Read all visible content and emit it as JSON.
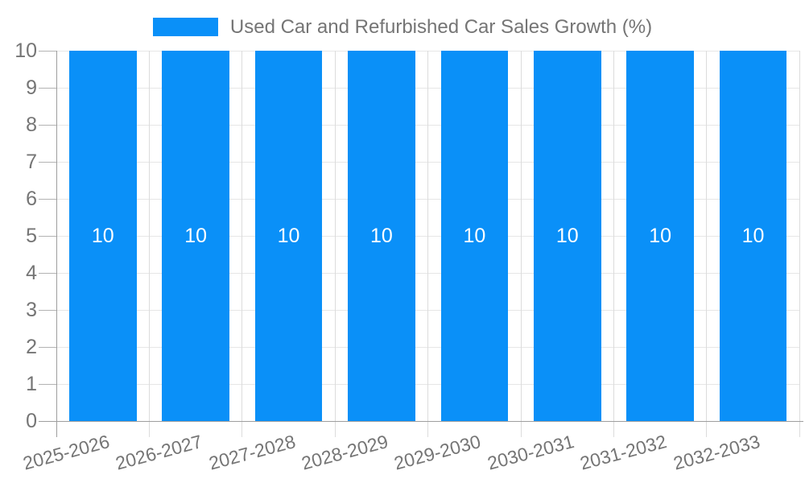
{
  "chart_data": {
    "type": "bar",
    "title": "",
    "categories": [
      "2025-2026",
      "2026-2027",
      "2027-2028",
      "2028-2029",
      "2029-2030",
      "2030-2031",
      "2031-2032",
      "2032-2033"
    ],
    "series": [
      {
        "name": "Used Car and Refurbished Car Sales Growth (%)",
        "values": [
          10,
          10,
          10,
          10,
          10,
          10,
          10,
          10
        ]
      }
    ],
    "bar_value_labels": [
      "10",
      "10",
      "10",
      "10",
      "10",
      "10",
      "10",
      "10"
    ],
    "xlabel": "",
    "ylabel": "",
    "ylim": [
      0,
      10
    ],
    "y_ticks": [
      0,
      1,
      2,
      3,
      4,
      5,
      6,
      7,
      8,
      9,
      10
    ],
    "grid": true,
    "legend_position": "top",
    "x_label_rotation_deg": -15,
    "colors": {
      "bar": "#0a90f8",
      "label": "#757575",
      "axis": "#9e9e9e",
      "grid": "#e6e6e6",
      "grid_vertical": "#dcdcdc",
      "tick": "#b3b3b3",
      "value_label": "#ffffff",
      "background": "#ffffff"
    }
  }
}
